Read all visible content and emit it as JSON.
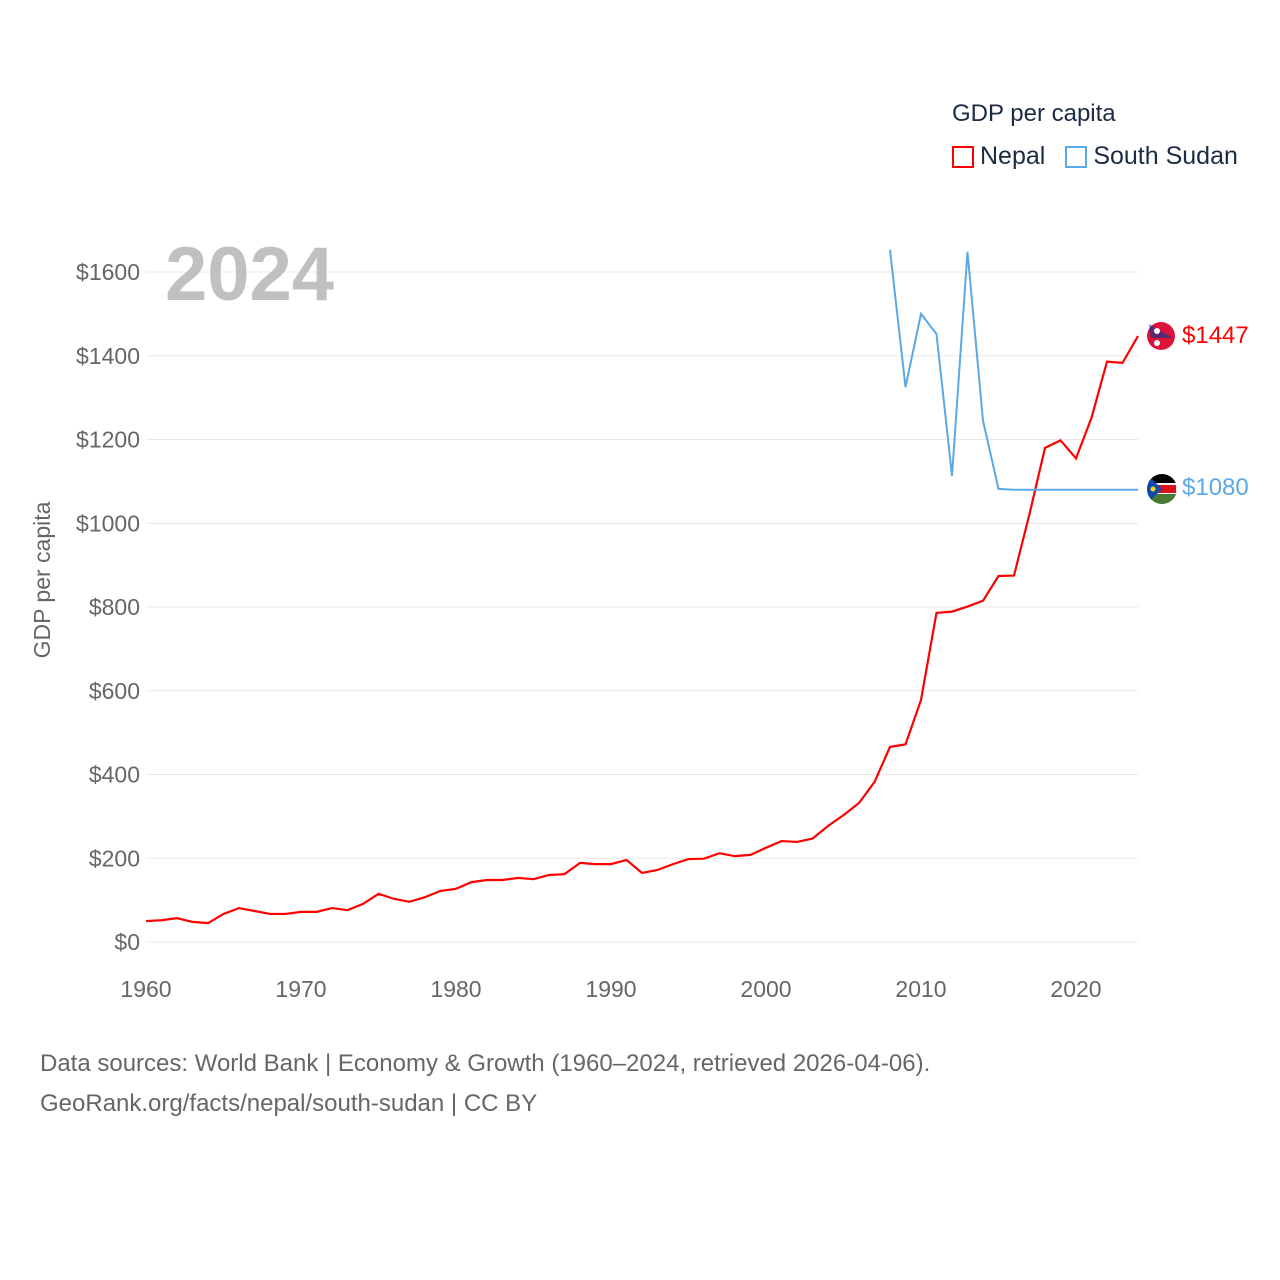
{
  "legend": {
    "title": "GDP per capita",
    "items": [
      {
        "name": "Nepal",
        "color": "#ff0000"
      },
      {
        "name": "South Sudan",
        "color": "#5aa9e6"
      }
    ]
  },
  "year_label": "2024",
  "end_labels": {
    "nepal": "$1447",
    "south_sudan": "$1080"
  },
  "footer": {
    "line1": "Data sources: World Bank | Economy & Growth (1960–2024, retrieved 2026-04-06).",
    "line2": "GeoRank.org/facts/nepal/south-sudan | CC BY"
  },
  "chart_data": {
    "type": "line",
    "title": "GDP per capita",
    "xlabel": "",
    "ylabel": "GDP per capita",
    "xlim": [
      1960,
      2024
    ],
    "ylim": [
      0,
      1600
    ],
    "xticks": [
      1960,
      1970,
      1980,
      1990,
      2000,
      2010,
      2020
    ],
    "yticks": [
      0,
      200,
      400,
      600,
      800,
      1000,
      1200,
      1400,
      1600
    ],
    "ytick_labels": [
      "$0",
      "$200",
      "$400",
      "$600",
      "$800",
      "$1000",
      "$1200",
      "$1400",
      "$1600"
    ],
    "grid": true,
    "legend_position": "top-right",
    "series": [
      {
        "name": "Nepal",
        "color": "#ff0000",
        "start_year": 1960,
        "values": [
          50,
          52,
          57,
          48,
          45,
          67,
          81,
          74,
          67,
          67,
          72,
          72,
          81,
          76,
          91,
          115,
          103,
          96,
          107,
          122,
          127,
          143,
          148,
          148,
          153,
          150,
          160,
          162,
          189,
          186,
          186,
          196,
          165,
          172,
          186,
          198,
          199,
          212,
          205,
          208,
          225,
          241,
          239,
          247,
          277,
          303,
          332,
          382,
          466,
          472,
          578,
          786,
          789,
          801,
          815,
          874,
          875,
          1022,
          1180,
          1198,
          1155,
          1252,
          1386,
          1383,
          1447
        ]
      },
      {
        "name": "South Sudan",
        "color": "#5aa9e6",
        "start_year": 2008,
        "values": [
          1653,
          1325,
          1500,
          1452,
          1113,
          1648,
          1245,
          1082,
          1080,
          1080,
          1080,
          1080,
          1080,
          1080,
          1080,
          1080,
          1080
        ]
      }
    ]
  }
}
